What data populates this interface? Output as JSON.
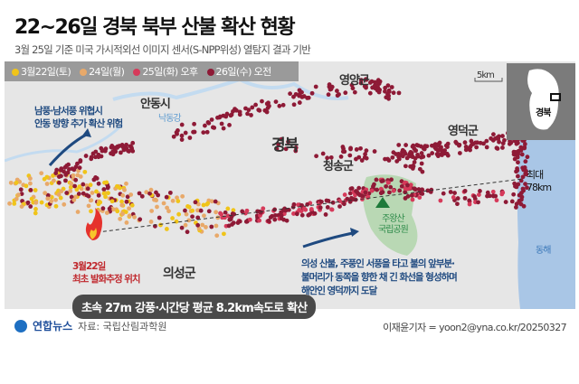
{
  "title": "22~26일 경북 북부 산불 확산 현황",
  "subtitle": "3월 25일 기준 미국 가시적외선 이미지 센서(S-NPP위성) 열탐지 결과 기반",
  "legend": [
    {
      "label": "3월22일(토)",
      "color": "#f0c419"
    },
    {
      "label": "24일(월)",
      "color": "#e8a96a"
    },
    {
      "label": "25일(화) 오후",
      "color": "#d63a5a"
    },
    {
      "label": "26일(수) 오전",
      "color": "#8e1a36"
    }
  ],
  "colors": {
    "land": "#e6e6e6",
    "sea": "#a9c6e6",
    "river": "#c3dbf0",
    "park": "#b9d8b4",
    "arrow": "#1f4a80"
  },
  "places": {
    "andong": "안동시",
    "nakdong": "낙동강",
    "yeongyang": "영양군",
    "gyeongbuk": "경북",
    "cheongsong": "청송군",
    "yeongdeok": "영덕군",
    "uiseong": "의성군",
    "juwangsan": "주왕산\n국립공원",
    "donghae": "동해"
  },
  "scale": "5km",
  "inset": {
    "label": "경북"
  },
  "annotations": {
    "andong_risk": "남풍·남서풍 위협시\n안동 방향 추가 확산 위험",
    "origin": "3월22일\n최초 발화추정 위치",
    "max_distance": "최대\n78km",
    "spread_note": "의성 산불, 주풍인 서풍을 타고 불의 앞부분·\n불머리가 동쪽을 향한 채 긴 화선을 형성하며\n해안인 영덕까지 도달"
  },
  "caption": "초속 27m 강풍·시간당 평균 8.2km속도로 확산",
  "footer": {
    "logo": "연합뉴스",
    "source": "자료: 국립산림과학원",
    "credit": "이재윤기자 = yoon2@yna.co.kr/20250327"
  }
}
